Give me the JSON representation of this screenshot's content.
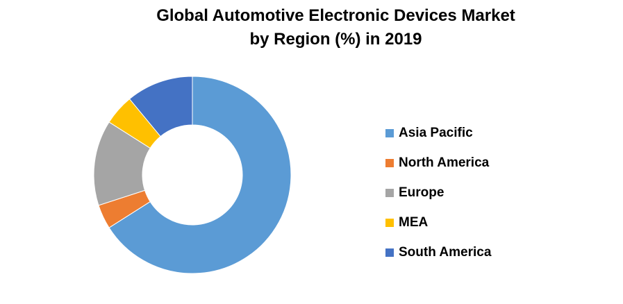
{
  "chart_data": {
    "type": "pie",
    "donut": true,
    "title_lines": [
      "Global Automotive Electronic  Devices Market",
      "by Region (%) in 2019"
    ],
    "categories": [
      "Asia Pacific",
      "North America",
      "Europe",
      "MEA",
      "South America"
    ],
    "values": [
      66,
      4,
      14,
      5,
      11
    ],
    "unit": "%",
    "colors": [
      "#5B9BD5",
      "#ED7D31",
      "#A5A5A5",
      "#FFC000",
      "#4472C4"
    ],
    "start_angle_deg": 0,
    "direction": "clockwise",
    "legend_position": "right"
  }
}
